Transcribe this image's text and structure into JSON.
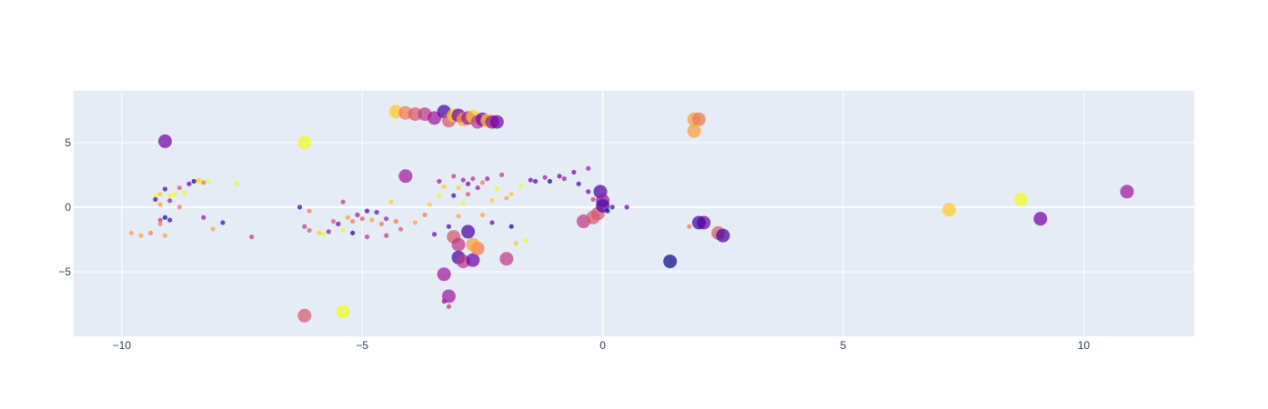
{
  "chart_data": {
    "type": "scatter",
    "title": "",
    "xlabel": "",
    "ylabel": "",
    "xlim": [
      -11,
      12.3
    ],
    "ylim": [
      -10,
      9
    ],
    "grid": true,
    "legend": "none",
    "x_ticks": [
      -10,
      -5,
      0,
      5,
      10
    ],
    "x_tick_labels": [
      "−10",
      "−5",
      "0",
      "5",
      "10"
    ],
    "y_ticks": [
      -5,
      0,
      5
    ],
    "y_tick_labels": [
      "−5",
      "0",
      "5"
    ],
    "colorscale": [
      "#0d0887",
      "#46039f",
      "#7201a8",
      "#9c179e",
      "#bd3786",
      "#d8576b",
      "#ed7953",
      "#fb9f3a",
      "#fdca26",
      "#f0f921"
    ],
    "series": [
      {
        "points": [
          {
            "x": -9.1,
            "y": 5.1,
            "size": "large",
            "c": 2
          },
          {
            "x": -6.2,
            "y": 5.0,
            "size": "large",
            "c": 9
          },
          {
            "x": -6.2,
            "y": -8.4,
            "size": "large",
            "c": 5
          },
          {
            "x": -5.4,
            "y": -8.1,
            "size": "large",
            "c": 9
          },
          {
            "x": -4.3,
            "y": 7.4,
            "size": "large",
            "c": 8
          },
          {
            "x": -4.1,
            "y": 7.3,
            "size": "large",
            "c": 6
          },
          {
            "x": -3.9,
            "y": 7.2,
            "size": "large",
            "c": 5
          },
          {
            "x": -3.7,
            "y": 7.2,
            "size": "large",
            "c": 4
          },
          {
            "x": -3.5,
            "y": 6.9,
            "size": "large",
            "c": 3
          },
          {
            "x": -3.3,
            "y": 7.4,
            "size": "large",
            "c": 1
          },
          {
            "x": -3.2,
            "y": 6.7,
            "size": "large",
            "c": 5
          },
          {
            "x": -3.1,
            "y": 7.1,
            "size": "large",
            "c": 8
          },
          {
            "x": -3.0,
            "y": 7.1,
            "size": "large",
            "c": 2
          },
          {
            "x": -2.9,
            "y": 6.8,
            "size": "large",
            "c": 7
          },
          {
            "x": -2.8,
            "y": 6.9,
            "size": "large",
            "c": 3
          },
          {
            "x": -2.7,
            "y": 7.0,
            "size": "large",
            "c": 8
          },
          {
            "x": -2.6,
            "y": 6.6,
            "size": "large",
            "c": 4
          },
          {
            "x": -2.5,
            "y": 6.8,
            "size": "large",
            "c": 2
          },
          {
            "x": -2.4,
            "y": 6.7,
            "size": "large",
            "c": 8
          },
          {
            "x": -2.3,
            "y": 6.6,
            "size": "large",
            "c": 3
          },
          {
            "x": -2.2,
            "y": 6.6,
            "size": "large",
            "c": 2
          },
          {
            "x": -4.1,
            "y": 2.4,
            "size": "large",
            "c": 3
          },
          {
            "x": -3.3,
            "y": -5.2,
            "size": "large",
            "c": 3
          },
          {
            "x": -3.2,
            "y": -6.9,
            "size": "large",
            "c": 3
          },
          {
            "x": -3.1,
            "y": -2.3,
            "size": "large",
            "c": 5
          },
          {
            "x": -3.0,
            "y": -2.9,
            "size": "large",
            "c": 4
          },
          {
            "x": -3.0,
            "y": -3.9,
            "size": "large",
            "c": 1
          },
          {
            "x": -2.9,
            "y": -4.2,
            "size": "large",
            "c": 4
          },
          {
            "x": -2.8,
            "y": -1.9,
            "size": "large",
            "c": 1
          },
          {
            "x": -2.7,
            "y": -4.1,
            "size": "large",
            "c": 2
          },
          {
            "x": -2.6,
            "y": -3.2,
            "size": "large",
            "c": 6
          },
          {
            "x": -2.7,
            "y": -2.9,
            "size": "large",
            "c": 7
          },
          {
            "x": -2.0,
            "y": -4.0,
            "size": "large",
            "c": 4
          },
          {
            "x": -0.4,
            "y": -1.1,
            "size": "large",
            "c": 4
          },
          {
            "x": -0.2,
            "y": -0.8,
            "size": "large",
            "c": 5
          },
          {
            "x": -0.1,
            "y": -0.5,
            "size": "large",
            "c": 5
          },
          {
            "x": -0.05,
            "y": 1.2,
            "size": "large",
            "c": 1
          },
          {
            "x": 0.0,
            "y": 0.5,
            "size": "large",
            "c": 3
          },
          {
            "x": 0.0,
            "y": 0.1,
            "size": "large",
            "c": 1
          },
          {
            "x": 1.4,
            "y": -4.2,
            "size": "large",
            "c": 0
          },
          {
            "x": 1.9,
            "y": 6.8,
            "size": "large",
            "c": 7
          },
          {
            "x": 2.0,
            "y": 6.8,
            "size": "large",
            "c": 6
          },
          {
            "x": 1.9,
            "y": 5.9,
            "size": "large",
            "c": 7
          },
          {
            "x": 2.1,
            "y": -1.2,
            "size": "large",
            "c": 2
          },
          {
            "x": 2.0,
            "y": -1.2,
            "size": "large",
            "c": 1
          },
          {
            "x": 2.4,
            "y": -2.0,
            "size": "large",
            "c": 5
          },
          {
            "x": 2.5,
            "y": -2.2,
            "size": "large",
            "c": 1
          },
          {
            "x": 7.2,
            "y": -0.2,
            "size": "large",
            "c": 8
          },
          {
            "x": 8.7,
            "y": 0.6,
            "size": "large",
            "c": 9
          },
          {
            "x": 9.1,
            "y": -0.9,
            "size": "large",
            "c": 2
          },
          {
            "x": 10.9,
            "y": 1.2,
            "size": "large",
            "c": 3
          },
          {
            "x": -9.8,
            "y": -2.0,
            "size": "small",
            "c": 7
          },
          {
            "x": -9.6,
            "y": -2.2,
            "size": "small",
            "c": 7
          },
          {
            "x": -9.4,
            "y": -2.0,
            "size": "small",
            "c": 6
          },
          {
            "x": -9.3,
            "y": 0.9,
            "size": "small",
            "c": 9
          },
          {
            "x": -9.3,
            "y": 0.6,
            "size": "small",
            "c": 1
          },
          {
            "x": -9.2,
            "y": 1.0,
            "size": "small",
            "c": 8
          },
          {
            "x": -9.2,
            "y": 0.2,
            "size": "small",
            "c": 7
          },
          {
            "x": -9.2,
            "y": -1.0,
            "size": "small",
            "c": 4
          },
          {
            "x": -9.1,
            "y": -0.8,
            "size": "small",
            "c": 0
          },
          {
            "x": -9.2,
            "y": -1.3,
            "size": "small",
            "c": 6
          },
          {
            "x": -9.1,
            "y": -2.2,
            "size": "small",
            "c": 7
          },
          {
            "x": -9.1,
            "y": 1.4,
            "size": "small",
            "c": 1
          },
          {
            "x": -9.0,
            "y": 0.9,
            "size": "small",
            "c": 9
          },
          {
            "x": -9.0,
            "y": -1.0,
            "size": "small",
            "c": 1
          },
          {
            "x": -9.0,
            "y": 0.5,
            "size": "small",
            "c": 3
          },
          {
            "x": -8.9,
            "y": 1.0,
            "size": "small",
            "c": 9
          },
          {
            "x": -8.8,
            "y": 0.0,
            "size": "small",
            "c": 6
          },
          {
            "x": -8.8,
            "y": 1.5,
            "size": "small",
            "c": 5
          },
          {
            "x": -8.7,
            "y": 1.1,
            "size": "small",
            "c": 9
          },
          {
            "x": -8.6,
            "y": 1.8,
            "size": "small",
            "c": 2
          },
          {
            "x": -8.5,
            "y": 2.0,
            "size": "small",
            "c": 0
          },
          {
            "x": -8.4,
            "y": 1.9,
            "size": "small",
            "c": 9
          },
          {
            "x": -8.4,
            "y": 2.1,
            "size": "small",
            "c": 8
          },
          {
            "x": -8.3,
            "y": 1.9,
            "size": "small",
            "c": 6
          },
          {
            "x": -8.3,
            "y": -0.8,
            "size": "small",
            "c": 3
          },
          {
            "x": -8.2,
            "y": 2.0,
            "size": "small",
            "c": 9
          },
          {
            "x": -8.1,
            "y": -1.7,
            "size": "small",
            "c": 7
          },
          {
            "x": -7.9,
            "y": -1.2,
            "size": "small",
            "c": 1
          },
          {
            "x": -7.6,
            "y": 1.8,
            "size": "small",
            "c": 9
          },
          {
            "x": -7.3,
            "y": -2.3,
            "size": "small",
            "c": 4
          },
          {
            "x": -6.3,
            "y": 0.0,
            "size": "small",
            "c": 1
          },
          {
            "x": -6.2,
            "y": -1.5,
            "size": "small",
            "c": 4
          },
          {
            "x": -6.1,
            "y": -1.8,
            "size": "small",
            "c": 5
          },
          {
            "x": -6.1,
            "y": -0.3,
            "size": "small",
            "c": 6
          },
          {
            "x": -5.9,
            "y": -2.0,
            "size": "small",
            "c": 8
          },
          {
            "x": -5.8,
            "y": -2.1,
            "size": "small",
            "c": 9
          },
          {
            "x": -5.7,
            "y": -1.9,
            "size": "small",
            "c": 3
          },
          {
            "x": -5.6,
            "y": -1.1,
            "size": "small",
            "c": 5
          },
          {
            "x": -5.5,
            "y": -1.3,
            "size": "small",
            "c": 2
          },
          {
            "x": -5.4,
            "y": -1.8,
            "size": "small",
            "c": 9
          },
          {
            "x": -5.4,
            "y": 0.4,
            "size": "small",
            "c": 4
          },
          {
            "x": -5.3,
            "y": -0.8,
            "size": "small",
            "c": 7
          },
          {
            "x": -5.2,
            "y": -1.1,
            "size": "small",
            "c": 6
          },
          {
            "x": -5.2,
            "y": -2.0,
            "size": "small",
            "c": 0
          },
          {
            "x": -5.1,
            "y": -0.6,
            "size": "small",
            "c": 3
          },
          {
            "x": -5.0,
            "y": -0.9,
            "size": "small",
            "c": 5
          },
          {
            "x": -4.9,
            "y": -0.3,
            "size": "small",
            "c": 1
          },
          {
            "x": -4.9,
            "y": -2.3,
            "size": "small",
            "c": 4
          },
          {
            "x": -4.8,
            "y": -1.0,
            "size": "small",
            "c": 7
          },
          {
            "x": -4.7,
            "y": -0.4,
            "size": "small",
            "c": 2
          },
          {
            "x": -4.6,
            "y": -1.3,
            "size": "small",
            "c": 6
          },
          {
            "x": -4.5,
            "y": -0.9,
            "size": "small",
            "c": 3
          },
          {
            "x": -4.5,
            "y": -2.2,
            "size": "small",
            "c": 4
          },
          {
            "x": -4.4,
            "y": 0.4,
            "size": "small",
            "c": 8
          },
          {
            "x": -4.3,
            "y": -1.1,
            "size": "small",
            "c": 6
          },
          {
            "x": -4.2,
            "y": -1.7,
            "size": "small",
            "c": 5
          },
          {
            "x": -3.9,
            "y": -1.2,
            "size": "small",
            "c": 7
          },
          {
            "x": -3.7,
            "y": -0.6,
            "size": "small",
            "c": 6
          },
          {
            "x": -3.6,
            "y": 0.2,
            "size": "small",
            "c": 8
          },
          {
            "x": -3.5,
            "y": -2.1,
            "size": "small",
            "c": 2
          },
          {
            "x": -3.4,
            "y": 0.9,
            "size": "small",
            "c": 9
          },
          {
            "x": -3.4,
            "y": 2.0,
            "size": "small",
            "c": 3
          },
          {
            "x": -3.3,
            "y": 1.6,
            "size": "small",
            "c": 8
          },
          {
            "x": -3.2,
            "y": -1.5,
            "size": "small",
            "c": 1
          },
          {
            "x": -3.1,
            "y": 2.4,
            "size": "small",
            "c": 4
          },
          {
            "x": -3.1,
            "y": 0.9,
            "size": "small",
            "c": 1
          },
          {
            "x": -3.0,
            "y": 1.5,
            "size": "small",
            "c": 8
          },
          {
            "x": -3.0,
            "y": -0.7,
            "size": "small",
            "c": 7
          },
          {
            "x": -2.9,
            "y": 2.1,
            "size": "small",
            "c": 3
          },
          {
            "x": -2.9,
            "y": 0.3,
            "size": "small",
            "c": 9
          },
          {
            "x": -2.8,
            "y": 1.0,
            "size": "small",
            "c": 5
          },
          {
            "x": -2.8,
            "y": 1.8,
            "size": "small",
            "c": 2
          },
          {
            "x": -2.7,
            "y": 2.2,
            "size": "small",
            "c": 4
          },
          {
            "x": -2.6,
            "y": 1.5,
            "size": "small",
            "c": 3
          },
          {
            "x": -2.5,
            "y": 1.9,
            "size": "small",
            "c": 6
          },
          {
            "x": -2.5,
            "y": -0.6,
            "size": "small",
            "c": 7
          },
          {
            "x": -2.4,
            "y": 2.2,
            "size": "small",
            "c": 3
          },
          {
            "x": -2.3,
            "y": -1.2,
            "size": "small",
            "c": 2
          },
          {
            "x": -2.3,
            "y": 0.5,
            "size": "small",
            "c": 8
          },
          {
            "x": -2.2,
            "y": 1.4,
            "size": "small",
            "c": 9
          },
          {
            "x": -2.1,
            "y": 2.5,
            "size": "small",
            "c": 4
          },
          {
            "x": -2.0,
            "y": 0.7,
            "size": "small",
            "c": 7
          },
          {
            "x": -1.9,
            "y": -1.5,
            "size": "small",
            "c": 0
          },
          {
            "x": -1.9,
            "y": 1.0,
            "size": "small",
            "c": 8
          },
          {
            "x": -1.8,
            "y": -2.8,
            "size": "small",
            "c": 8
          },
          {
            "x": -1.7,
            "y": 1.6,
            "size": "small",
            "c": 9
          },
          {
            "x": -1.6,
            "y": -2.6,
            "size": "small",
            "c": 9
          },
          {
            "x": -1.5,
            "y": 2.1,
            "size": "small",
            "c": 2
          },
          {
            "x": -1.4,
            "y": 2.0,
            "size": "small",
            "c": 1
          },
          {
            "x": -1.2,
            "y": 2.3,
            "size": "small",
            "c": 3
          },
          {
            "x": -1.1,
            "y": 2.0,
            "size": "small",
            "c": 0
          },
          {
            "x": -0.9,
            "y": 2.4,
            "size": "small",
            "c": 2
          },
          {
            "x": -0.8,
            "y": 2.2,
            "size": "small",
            "c": 3
          },
          {
            "x": -0.6,
            "y": 2.7,
            "size": "small",
            "c": 2
          },
          {
            "x": -0.5,
            "y": 1.8,
            "size": "small",
            "c": 1
          },
          {
            "x": -0.3,
            "y": 3.0,
            "size": "small",
            "c": 3
          },
          {
            "x": -0.3,
            "y": 1.2,
            "size": "small",
            "c": 2
          },
          {
            "x": -0.2,
            "y": 0.6,
            "size": "small",
            "c": 4
          },
          {
            "x": 0.1,
            "y": -0.3,
            "size": "small",
            "c": 0
          },
          {
            "x": 0.2,
            "y": 0.0,
            "size": "small",
            "c": 1
          },
          {
            "x": 0.5,
            "y": 0.0,
            "size": "small",
            "c": 2
          },
          {
            "x": 1.8,
            "y": -1.5,
            "size": "small",
            "c": 6
          },
          {
            "x": -3.3,
            "y": -7.3,
            "size": "small",
            "c": 3
          },
          {
            "x": -3.2,
            "y": -7.7,
            "size": "small",
            "c": 4
          }
        ]
      }
    ]
  }
}
